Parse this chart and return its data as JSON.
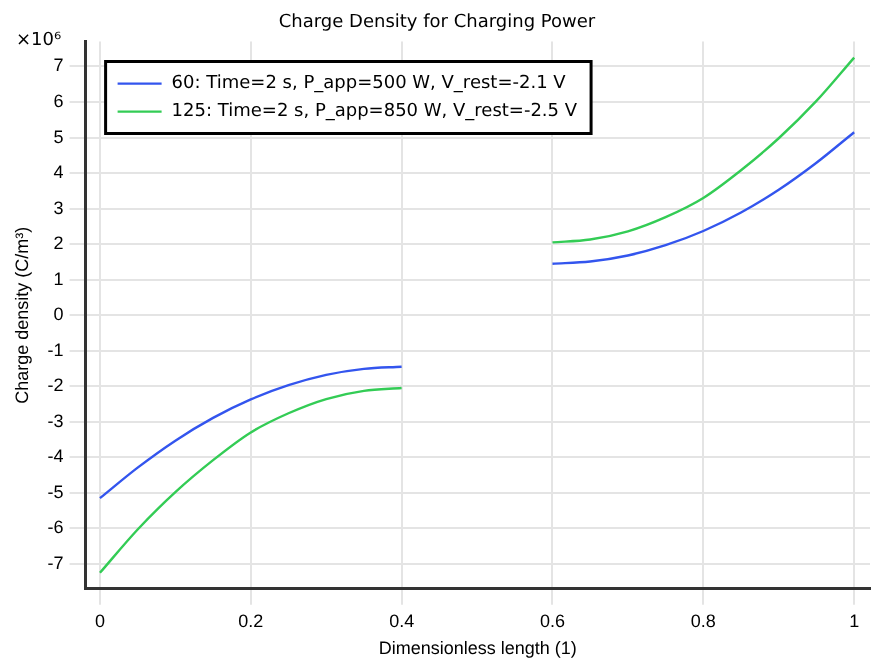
{
  "chart_data": {
    "type": "line",
    "title": "Charge Density for Charging Power",
    "xlabel": "Dimensionless length (1)",
    "ylabel": "Charge density (C/m³)",
    "annotations": [
      "×10⁶"
    ],
    "x": [
      0,
      0.05,
      0.1,
      0.15,
      0.2,
      0.25,
      0.3,
      0.35,
      0.4,
      0.5,
      0.6,
      0.65,
      0.7,
      0.75,
      0.8,
      0.85,
      0.9,
      0.95,
      1
    ],
    "series": [
      {
        "name": "60: Time=2 s, P_app=500 W, V_rest=-2.1 V",
        "color": "#3355ee",
        "values": [
          -5.15,
          -4.29,
          -3.53,
          -2.89,
          -2.37,
          -1.97,
          -1.68,
          -1.51,
          -1.45,
          null,
          1.45,
          1.51,
          1.68,
          1.97,
          2.37,
          2.89,
          3.53,
          4.29,
          5.15
        ]
      },
      {
        "name": "125: Time=2 s, P_app=850 W, V_rest=-2.5 V",
        "color": "#33cc55",
        "values": [
          -7.25,
          -6.03,
          -4.98,
          -4.08,
          -3.3,
          -2.76,
          -2.36,
          -2.13,
          -2.05,
          null,
          2.05,
          2.13,
          2.36,
          2.76,
          3.3,
          4.08,
          4.98,
          6.03,
          7.25
        ]
      }
    ],
    "xlim": [
      -0.019,
      1.021
    ],
    "xticks": [
      0,
      0.2,
      0.4,
      0.6,
      0.8,
      1
    ],
    "ylim": [
      -7.7,
      7.7
    ],
    "yticks": [
      -7,
      -6,
      -5,
      -4,
      -3,
      -2,
      -1,
      0,
      1,
      2,
      3,
      4,
      5,
      6,
      7
    ],
    "grid": true,
    "legend": "top left",
    "line_style": "solid",
    "marker": "none"
  }
}
